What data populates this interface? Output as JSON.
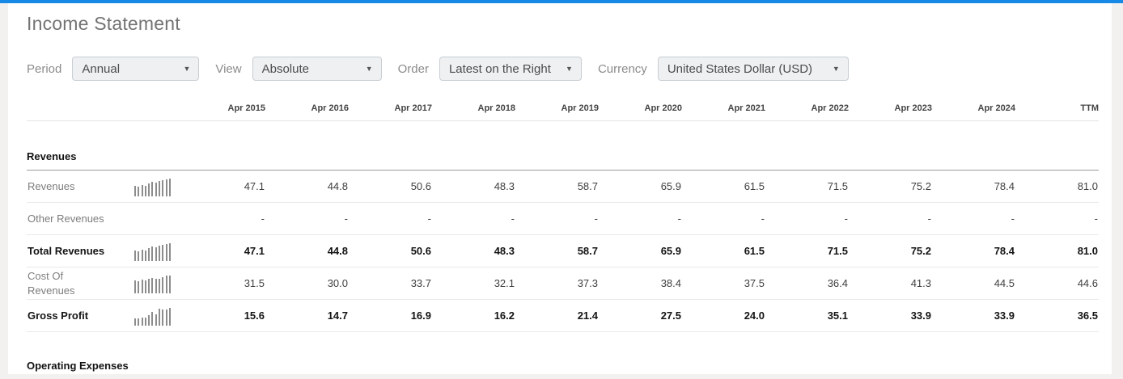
{
  "page": {
    "title": "Income Statement"
  },
  "colors": {
    "top_bar": "#1789e6",
    "spark_bar": "#8d8d8d"
  },
  "filters": [
    {
      "label": "Period",
      "value": "Annual"
    },
    {
      "label": "View",
      "value": "Absolute"
    },
    {
      "label": "Order",
      "value": "Latest on the Right"
    },
    {
      "label": "Currency",
      "value": "United States Dollar (USD)"
    }
  ],
  "dropdown_arrow": "▼",
  "table": {
    "columns": [
      "Apr 2015",
      "Apr 2016",
      "Apr 2017",
      "Apr 2018",
      "Apr 2019",
      "Apr 2020",
      "Apr 2021",
      "Apr 2022",
      "Apr 2023",
      "Apr 2024",
      "TTM"
    ],
    "sections": [
      {
        "header": "Revenues",
        "clipped": false,
        "rows": [
          {
            "label": "Revenues",
            "bold": false,
            "sparkline": true,
            "values": [
              "47.1",
              "44.8",
              "50.6",
              "48.3",
              "58.7",
              "65.9",
              "61.5",
              "71.5",
              "75.2",
              "78.4",
              "81.0"
            ]
          },
          {
            "label": "Other Revenues",
            "bold": false,
            "sparkline": false,
            "values": [
              "-",
              "-",
              "-",
              "-",
              "-",
              "-",
              "-",
              "-",
              "-",
              "-",
              "-"
            ]
          },
          {
            "label": "Total Revenues",
            "bold": true,
            "sparkline": true,
            "values": [
              "47.1",
              "44.8",
              "50.6",
              "48.3",
              "58.7",
              "65.9",
              "61.5",
              "71.5",
              "75.2",
              "78.4",
              "81.0"
            ]
          },
          {
            "label": "Cost Of Revenues",
            "bold": false,
            "sparkline": true,
            "values": [
              "31.5",
              "30.0",
              "33.7",
              "32.1",
              "37.3",
              "38.4",
              "37.5",
              "36.4",
              "41.3",
              "44.5",
              "44.6"
            ]
          },
          {
            "label": "Gross Profit",
            "bold": true,
            "sparkline": true,
            "values": [
              "15.6",
              "14.7",
              "16.9",
              "16.2",
              "21.4",
              "27.5",
              "24.0",
              "35.1",
              "33.9",
              "33.9",
              "36.5"
            ]
          }
        ]
      },
      {
        "header": "Operating Expenses",
        "clipped": true,
        "rows": []
      }
    ]
  }
}
